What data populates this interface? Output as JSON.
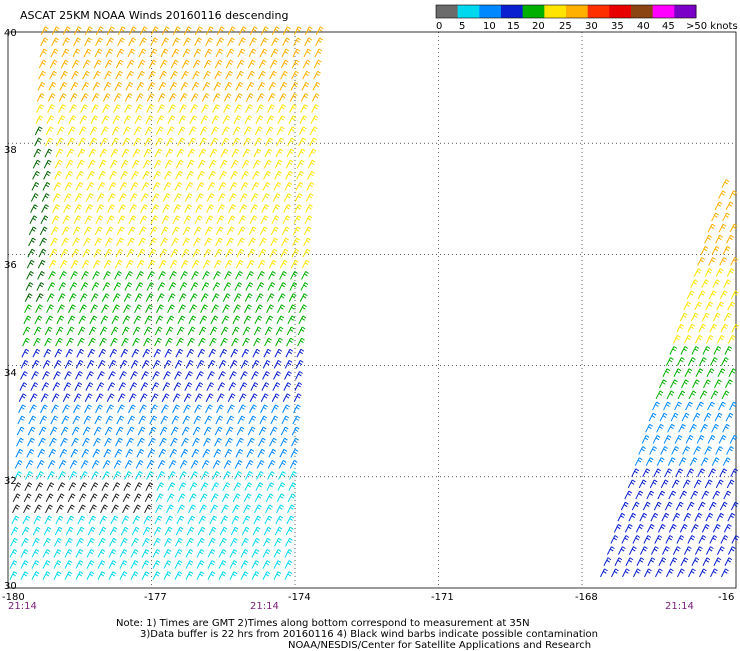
{
  "title": "ASCAT 25KM NOAA Winds 20160116 descending",
  "colorbar": {
    "labels": [
      "0",
      "5",
      "10",
      "15",
      "20",
      "25",
      "30",
      "35",
      "40",
      "45",
      ">50 knots"
    ],
    "colors": [
      "#6b6b6b",
      "#00d8f0",
      "#0088ff",
      "#0a1fd0",
      "#00b000",
      "#ffe400",
      "#ffb000",
      "#ff3000",
      "#e80000",
      "#8b4513",
      "#ff00ff",
      "#7a00c8"
    ]
  },
  "axes": {
    "lat_labels": [
      "40",
      "38",
      "36",
      "34",
      "32",
      "30"
    ],
    "lon_labels": [
      "-180",
      "-177",
      "-174",
      "-171",
      "-168",
      "-16"
    ],
    "lat_range": [
      30,
      40
    ],
    "lon_range": [
      -180,
      -165.5
    ],
    "gridlines": true
  },
  "times": [
    "21:14",
    "21:14",
    "21:14"
  ],
  "notes": {
    "line1": "Note: 1) Times are GMT 2)Times along bottom correspond to measurement at 35N",
    "line2": "3)Data buffer is 22 hrs from 20160116 4) Black wind barbs indicate possible contamination",
    "line3": "NOAA/NESDIS/Center for Satellite Applications and Research"
  },
  "swaths": [
    {
      "name": "swath-west",
      "lon_west_top": -179.3,
      "lon_east_top": -173.4,
      "lon_west_bottom": -180,
      "lon_east_bottom": -174.1
    },
    {
      "name": "swath-east",
      "lon_west_top": -165.6,
      "lon_east_top": -165.5,
      "lon_west_bottom": -167.7,
      "lon_east_bottom": -165.5
    }
  ],
  "wind_bands": [
    {
      "from_lat": 38.6,
      "to_lat": 40,
      "color": "#ffb000",
      "color_east": "#8b4513"
    },
    {
      "from_lat": 37.6,
      "to_lat": 38.6,
      "color": "#ffe400",
      "color_east": "#ffb000"
    },
    {
      "from_lat": 35.6,
      "to_lat": 37.6,
      "color": "#ffe400",
      "color_east": "#ffb000"
    },
    {
      "from_lat": 34.2,
      "to_lat": 35.6,
      "color": "#00b000",
      "color_east": "#ffe400"
    },
    {
      "from_lat": 33.3,
      "to_lat": 34.2,
      "color": "#0a1fd0",
      "color_east": "#00b000"
    },
    {
      "from_lat": 32.1,
      "to_lat": 33.3,
      "color": "#0088ff",
      "color_east": "#0088ff"
    },
    {
      "from_lat": 30,
      "to_lat": 32.1,
      "color": "#00d8f0",
      "color_east": "#0a1fd0"
    }
  ]
}
